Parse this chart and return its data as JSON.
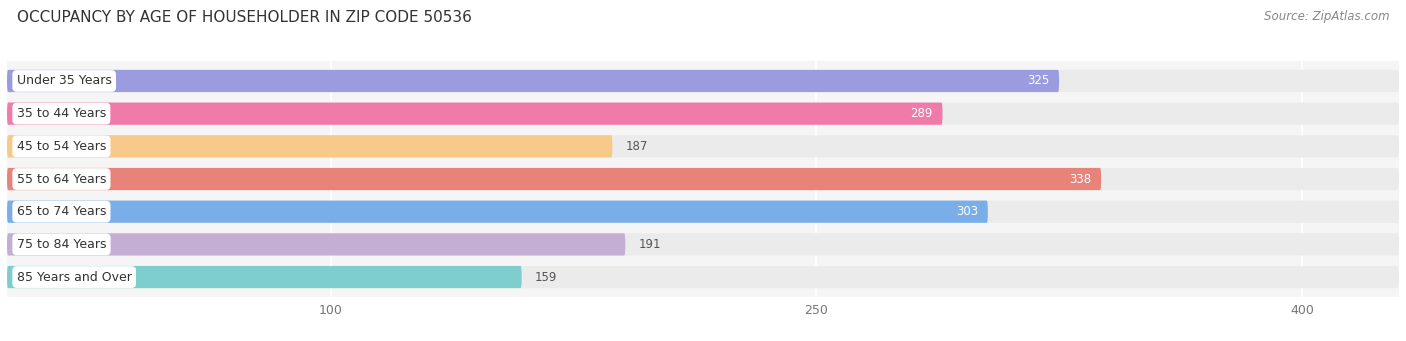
{
  "title": "OCCUPANCY BY AGE OF HOUSEHOLDER IN ZIP CODE 50536",
  "source": "Source: ZipAtlas.com",
  "categories": [
    "Under 35 Years",
    "35 to 44 Years",
    "45 to 54 Years",
    "55 to 64 Years",
    "65 to 74 Years",
    "75 to 84 Years",
    "85 Years and Over"
  ],
  "values": [
    325,
    289,
    187,
    338,
    303,
    191,
    159
  ],
  "bar_colors": [
    "#9b9be0",
    "#f07bab",
    "#f7c98a",
    "#e8837a",
    "#7aaee8",
    "#c4aed4",
    "#7ecece"
  ],
  "bar_bg_color": "#ebebeb",
  "x_ticks": [
    100,
    250,
    400
  ],
  "x_min": 0,
  "x_max": 430,
  "title_fontsize": 11,
  "source_fontsize": 8.5,
  "label_fontsize": 9,
  "value_fontsize": 8.5,
  "bar_height": 0.68,
  "bar_gap": 0.32,
  "fig_bg_color": "#ffffff",
  "axes_bg_color": "#f5f5f5",
  "grid_color": "#ffffff",
  "value_threshold": 200
}
